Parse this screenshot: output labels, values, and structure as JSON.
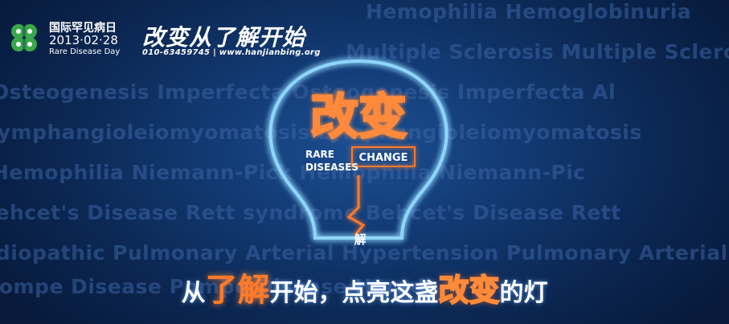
{
  "background_terms": [
    "Hemophilia  Hemoglobinuria",
    "Multiple Sclerosis  Multiple Sclerosis Complex",
    "Osteogenesis Imperfecta  Osteogenesis Imperfecta  Al",
    "Lymphangioleiomyomatosis  Lymphangioleiomyomatosis",
    "Hemophilia    Niemann-Pick Hemophilia    Niemann-Pic",
    "Behcet's Disease    Rett syndrome Behcet's Disease    Rett",
    "Idiopathic Pulmonary Arterial Hypertension  Pulmonary Arterial",
    "Pompe Disease  Pompe Disease  Heredi"
  ],
  "logo": {
    "line1": "国际罕见病日",
    "line2": "2013·02·28",
    "line3": "Rare Disease Day"
  },
  "header": {
    "slogan": "改变从了解开始",
    "contact": "010-63459745 | www.hanjianbing.org"
  },
  "bulb": {
    "title": "改变",
    "rare": "RARE",
    "diseases": "DISEASES",
    "change": "CHANGE",
    "filament_label": "解"
  },
  "bottom": {
    "part1": "从",
    "part2": "了解",
    "part3": "开始，点亮这盏",
    "part4": "改变",
    "part5": "的灯"
  },
  "colors": {
    "neon_blue": "#6fc6ff",
    "neon_orange": "#ff7a2a",
    "clover_green": "#3aa84a"
  }
}
